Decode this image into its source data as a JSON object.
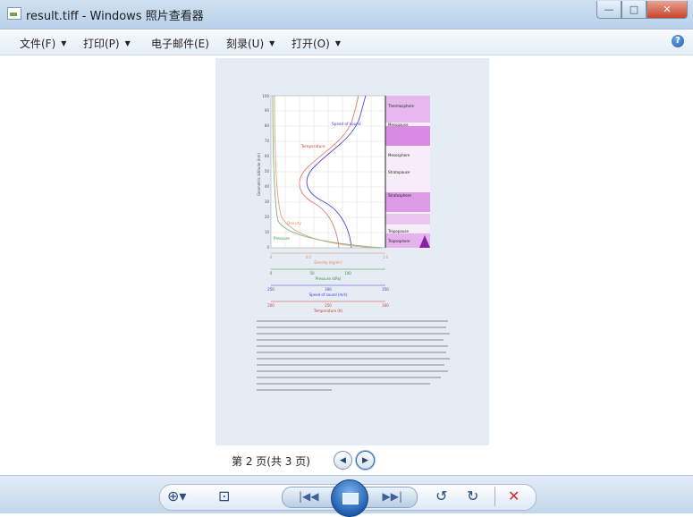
{
  "window": {
    "title": "result.tiff - Windows 照片查看器",
    "minimize_glyph": "—",
    "maximize_glyph": "□",
    "close_glyph": "✕"
  },
  "menu": {
    "items": [
      {
        "label": "文件(F)",
        "has_arrow": true
      },
      {
        "label": "打印(P)",
        "has_arrow": true
      },
      {
        "label": "电子邮件(E)",
        "has_arrow": false
      },
      {
        "label": "刻录(U)",
        "has_arrow": true
      },
      {
        "label": "打开(O)",
        "has_arrow": true
      }
    ],
    "arrow_glyph": "▼",
    "help_glyph": "?"
  },
  "page_nav": {
    "status": "第 2 页(共 3 页)",
    "prev_glyph": "◀",
    "next_glyph": "▶"
  },
  "toolbar": {
    "zoom_glyph": "⊕▾",
    "fit_glyph": "⊡",
    "prev_glyph": "|◀◀",
    "next_glyph": "▶▶|",
    "rotate_ccw_glyph": "↺",
    "rotate_cw_glyph": "↻",
    "delete_glyph": "✕"
  },
  "document": {
    "ylabel": "Geometric altitude (km)",
    "y_ticks": [
      "0",
      "10",
      "20",
      "30",
      "40",
      "50",
      "60",
      "70",
      "80",
      "90",
      "100"
    ],
    "curve_labels": {
      "speed_of_sound": "Speed of sound",
      "temperature": "Temperature",
      "density": "Density",
      "pressure": "Pressure"
    },
    "layer_labels": [
      "Thermosphere",
      "Mesopause",
      "Mesosphere",
      "Stratopause",
      "Stratosphere",
      "Tropopause",
      "Troposphere"
    ],
    "axes": [
      {
        "label": "Density (kg/m³)",
        "ticks": [
          "0",
          "0.5",
          "1.0"
        ],
        "color": "#d98b5e"
      },
      {
        "label": "Pressure (kPa)",
        "ticks": [
          "0",
          "50",
          "100"
        ],
        "color": "#3c8a3c"
      },
      {
        "label": "Speed of sound (m/s)",
        "ticks": [
          "250",
          "300",
          "350"
        ],
        "color": "#3a3ad0"
      },
      {
        "label": "Temperature (K)",
        "ticks": [
          "200",
          "250",
          "300"
        ],
        "color": "#d03a3a"
      }
    ]
  },
  "colors": {
    "accent": "#1f5fb0",
    "titlebar": "#b9d1ea",
    "page_bg": "#e6ecf4",
    "delete": "#d22b2b"
  }
}
